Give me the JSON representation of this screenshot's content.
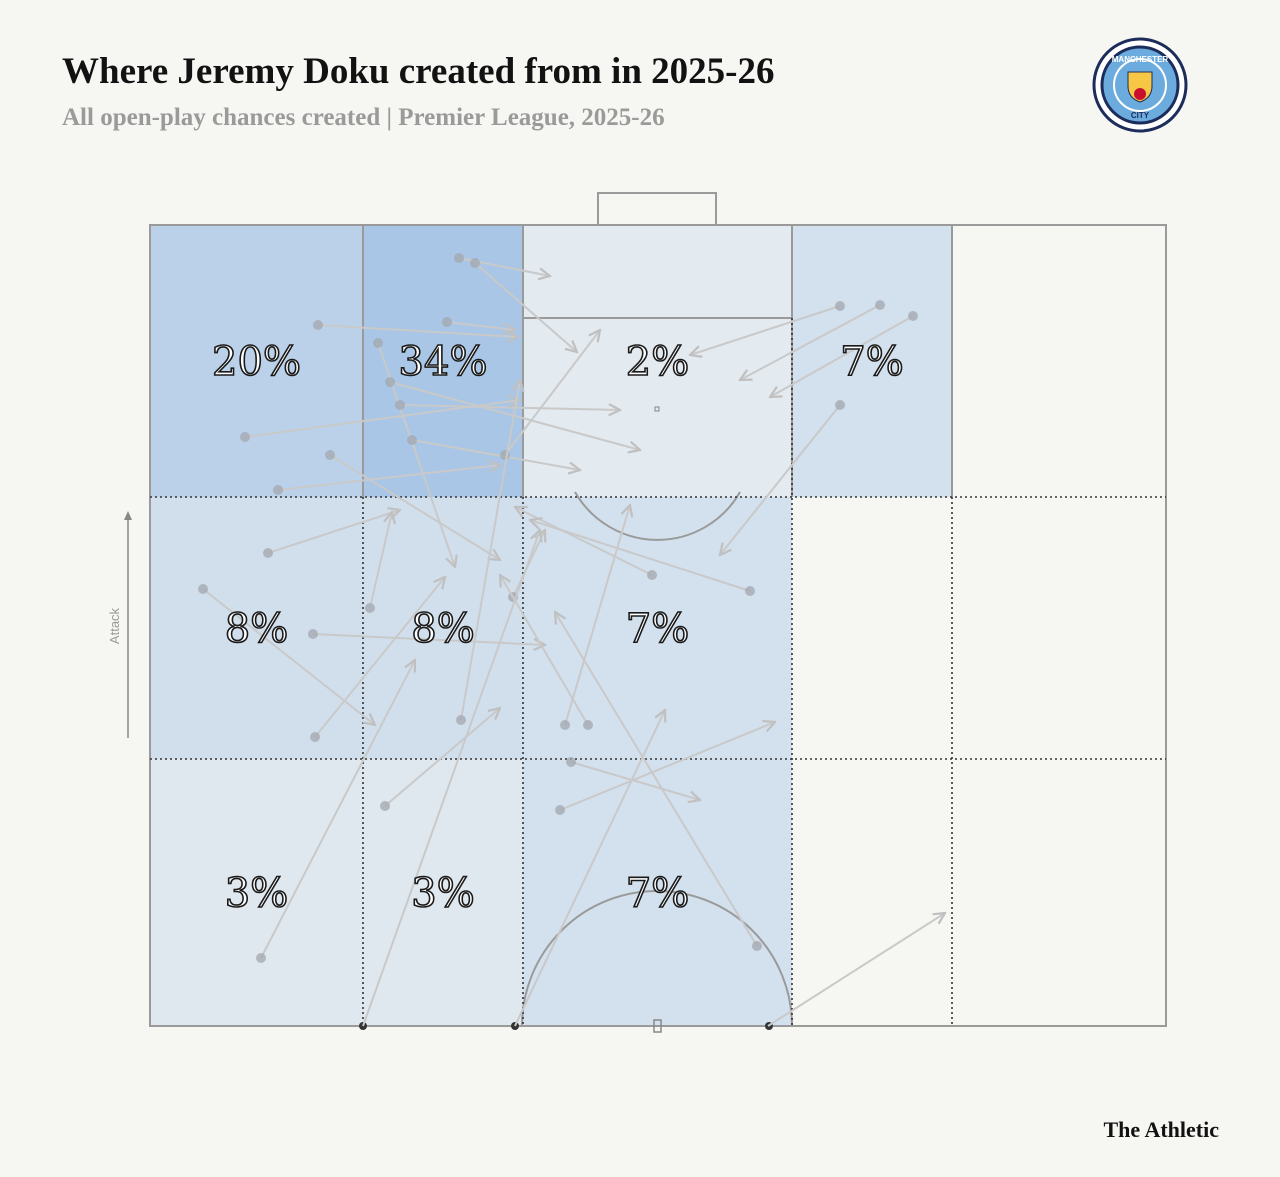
{
  "chart_data": {
    "type": "heatmap",
    "title": "Where Jeremy Doku created from in 2025-26",
    "subtitle": "All open-play chances created | Premier League, 2025-26",
    "axis_label": "Attack",
    "source": "The Athletic",
    "badge": {
      "top": "MANCHESTER",
      "bottom": "CITY"
    },
    "color": "#a9c6e6",
    "values": [
      [
        20,
        34,
        2,
        7,
        null
      ],
      [
        8,
        8,
        7,
        null,
        null
      ],
      [
        3,
        3,
        7,
        null,
        null
      ]
    ],
    "value_labels": [
      [
        "20%",
        "34%",
        "2%",
        "7%",
        null
      ],
      [
        "8%",
        "8%",
        "7%",
        null,
        null
      ],
      [
        "3%",
        "3%",
        "7%",
        null,
        null
      ]
    ]
  }
}
